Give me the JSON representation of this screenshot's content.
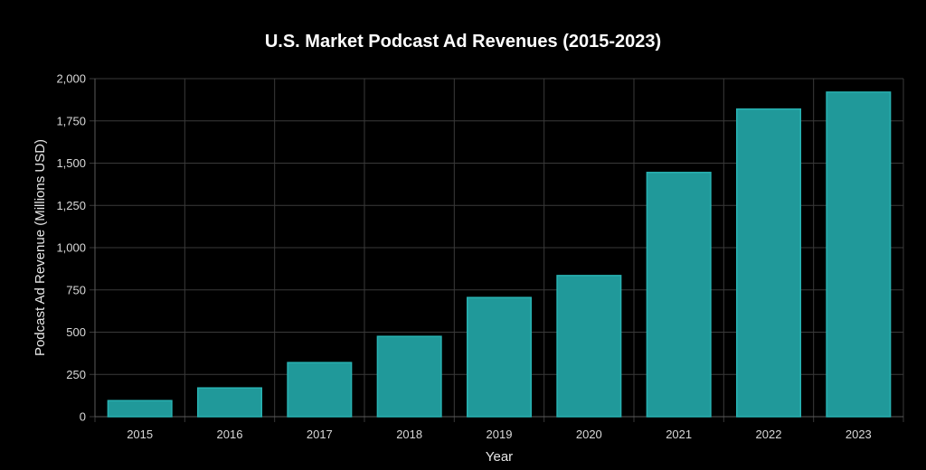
{
  "chart_data": {
    "type": "bar",
    "title": "U.S. Market Podcast Ad Revenues (2015-2023)",
    "xlabel": "Year",
    "ylabel": "Podcast Ad Revenue (Millions USD)",
    "categories": [
      "2015",
      "2016",
      "2017",
      "2018",
      "2019",
      "2020",
      "2021",
      "2022",
      "2023"
    ],
    "values": [
      95,
      170,
      320,
      475,
      705,
      835,
      1445,
      1820,
      1920
    ],
    "ylim": [
      0,
      2000
    ],
    "yticks": [
      0,
      250,
      500,
      750,
      1000,
      1250,
      1500,
      1750,
      2000
    ],
    "ytick_labels": [
      "0",
      "250",
      "500",
      "750",
      "1,000",
      "1,250",
      "1,500",
      "1,750",
      "2,000"
    ],
    "grid": true,
    "bar_color": "#20999a",
    "bar_border_color": "#28b3b3",
    "background": "#000000"
  }
}
